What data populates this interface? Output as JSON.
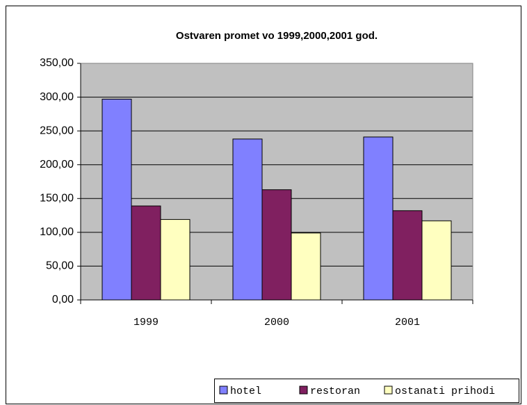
{
  "chart_data": {
    "type": "bar",
    "title": "Ostvaren promet vo 1999,2000,2001 god.",
    "categories": [
      "1999",
      "2000",
      "2001"
    ],
    "series": [
      {
        "name": "hotel",
        "color": "#8080ff",
        "values": [
          297,
          238,
          241
        ]
      },
      {
        "name": "restoran",
        "color": "#802060",
        "values": [
          139,
          163,
          132
        ]
      },
      {
        "name": "ostanati prihodi",
        "color": "#ffffc0",
        "values": [
          119,
          99,
          117
        ]
      }
    ],
    "ylim": [
      0,
      350
    ],
    "yticks": [
      {
        "value": 0,
        "label": "0,00"
      },
      {
        "value": 50,
        "label": "50,00"
      },
      {
        "value": 100,
        "label": "100,00"
      },
      {
        "value": 150,
        "label": "150,00"
      },
      {
        "value": 200,
        "label": "200,00"
      },
      {
        "value": 250,
        "label": "250,00"
      },
      {
        "value": 300,
        "label": "300,00"
      },
      {
        "value": 350,
        "label": "350,00"
      }
    ],
    "grid": true,
    "plot_background": "#c0c0c0",
    "legend": "bottom-right"
  }
}
